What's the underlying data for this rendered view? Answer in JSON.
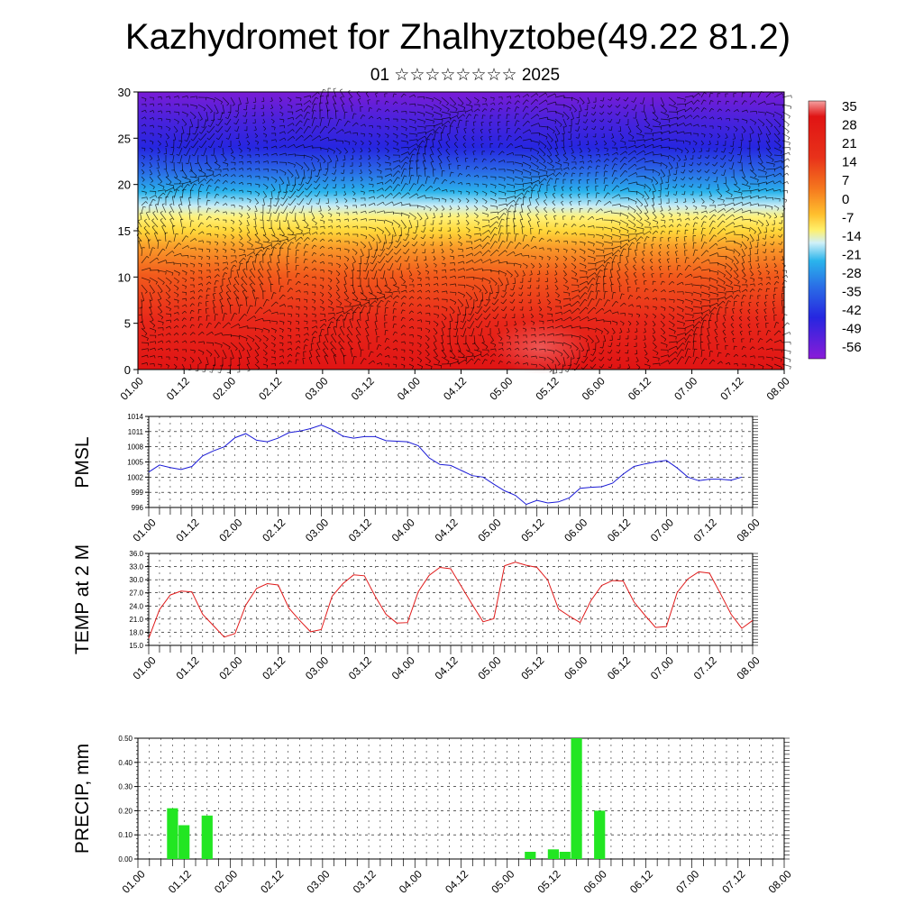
{
  "title": "Kazhydromet for Zhalhyztobe(49.22 81.2)",
  "subtitle": "01 ☆☆☆☆☆☆☆☆ 2025",
  "x_ticks": [
    "01.00",
    "01.12",
    "02.00",
    "02.12",
    "03.00",
    "03.12",
    "04.00",
    "04.12",
    "05.00",
    "05.12",
    "06.00",
    "06.12",
    "07.00",
    "07.12",
    "08.00"
  ],
  "colorbar_labels": [
    "35",
    "28",
    "21",
    "14",
    "7",
    "0",
    "-7",
    "-14",
    "-21",
    "-28",
    "-35",
    "-42",
    "-49",
    "-56"
  ],
  "chart_data": [
    {
      "type": "heatmap",
      "name": "vertical temperature cross-section with wind barbs",
      "ylim": [
        0,
        30
      ],
      "y_ticks": [
        "0",
        "5",
        "10",
        "15",
        "20",
        "25",
        "30"
      ],
      "x_ticks": [
        "01.00",
        "01.12",
        "02.00",
        "02.12",
        "03.00",
        "03.12",
        "04.00",
        "04.12",
        "05.00",
        "05.12",
        "06.00",
        "06.12",
        "07.00",
        "07.12",
        "08.00"
      ],
      "colorbar": {
        "min": -60,
        "max": 38,
        "labels": [
          "35",
          "28",
          "21",
          "14",
          "7",
          "0",
          "-7",
          "-14",
          "-21",
          "-28",
          "-35",
          "-42",
          "-49",
          "-56"
        ]
      },
      "colors": {
        "warm": "#d81e1e",
        "mid": "#ffe23c",
        "cold": "#3a2ce0",
        "top": "#7a1cd6"
      }
    },
    {
      "type": "line",
      "ylabel": "PMSL",
      "ylim": [
        996,
        1014
      ],
      "y_ticks": [
        "996",
        "999",
        "1002",
        "1005",
        "1008",
        "1011",
        "1014"
      ],
      "color": "#1a1ad6",
      "x_ticks": [
        "01.00",
        "01.12",
        "02.00",
        "02.12",
        "03.00",
        "03.12",
        "04.00",
        "04.12",
        "05.00",
        "05.12",
        "06.00",
        "06.12",
        "07.00",
        "07.12",
        "08.00"
      ],
      "values": [
        1003.0,
        1004.4,
        1003.9,
        1003.5,
        1004.1,
        1006.2,
        1007.2,
        1008.0,
        1009.8,
        1010.6,
        1009.3,
        1009.0,
        1009.7,
        1010.8,
        1011.1,
        1011.6,
        1012.3,
        1011.4,
        1010.1,
        1009.7,
        1010.0,
        1010.0,
        1009.2,
        1009.1,
        1009.0,
        1008.2,
        1005.8,
        1004.5,
        1004.3,
        1003.3,
        1002.3,
        1002.0,
        1000.6,
        999.3,
        998.4,
        996.6,
        997.4,
        996.9,
        997.1,
        997.9,
        999.8,
        1000.0,
        1000.1,
        1000.8,
        1002.6,
        1004.1,
        1004.6,
        1005.0,
        1005.3,
        1003.8,
        1002.0,
        1001.3,
        1001.6,
        1001.6,
        1001.4,
        1002.0
      ]
    },
    {
      "type": "line",
      "ylabel": "TEMP at 2 M",
      "ylim": [
        15,
        36
      ],
      "y_ticks": [
        "15.0",
        "18.0",
        "21.0",
        "24.0",
        "27.0",
        "30.0",
        "33.0",
        "36.0"
      ],
      "color": "#e01a1a",
      "x_ticks": [
        "01.00",
        "01.12",
        "02.00",
        "02.12",
        "03.00",
        "03.12",
        "04.00",
        "04.12",
        "05.00",
        "05.12",
        "06.00",
        "06.12",
        "07.00",
        "07.12",
        "08.00"
      ],
      "values": [
        16.6,
        23.2,
        26.5,
        27.4,
        27.2,
        22.1,
        19.5,
        16.9,
        17.7,
        24.2,
        28.0,
        29.1,
        28.8,
        23.5,
        20.7,
        18.1,
        18.6,
        26.2,
        29.1,
        31.1,
        30.9,
        26.2,
        22.1,
        20.1,
        20.2,
        27.3,
        31.0,
        32.8,
        32.5,
        28.4,
        24.3,
        20.4,
        21.1,
        33.2,
        34.0,
        33.3,
        32.8,
        29.9,
        23.3,
        21.7,
        20.2,
        25.2,
        28.7,
        29.8,
        29.7,
        24.9,
        21.9,
        19.1,
        19.3,
        27.1,
        30.2,
        31.8,
        31.5,
        26.9,
        22.1,
        18.9,
        20.7
      ]
    },
    {
      "type": "bar",
      "ylabel": "PRECIP, mm",
      "ylim": [
        0,
        0.5
      ],
      "y_ticks": [
        "0.00",
        "0.10",
        "0.20",
        "0.30",
        "0.40",
        "0.50"
      ],
      "color": "#22e622",
      "x_ticks": [
        "01.00",
        "01.12",
        "02.00",
        "02.12",
        "03.00",
        "03.12",
        "04.00",
        "04.12",
        "05.00",
        "05.12",
        "06.00",
        "06.12",
        "07.00",
        "07.12",
        "08.00"
      ],
      "bars": [
        {
          "x": 3,
          "value": 0.21
        },
        {
          "x": 4,
          "value": 0.14
        },
        {
          "x": 6,
          "value": 0.18
        },
        {
          "x": 34,
          "value": 0.03
        },
        {
          "x": 36,
          "value": 0.04
        },
        {
          "x": 37,
          "value": 0.03
        },
        {
          "x": 38,
          "value": 0.5
        },
        {
          "x": 40,
          "value": 0.2
        }
      ]
    }
  ]
}
